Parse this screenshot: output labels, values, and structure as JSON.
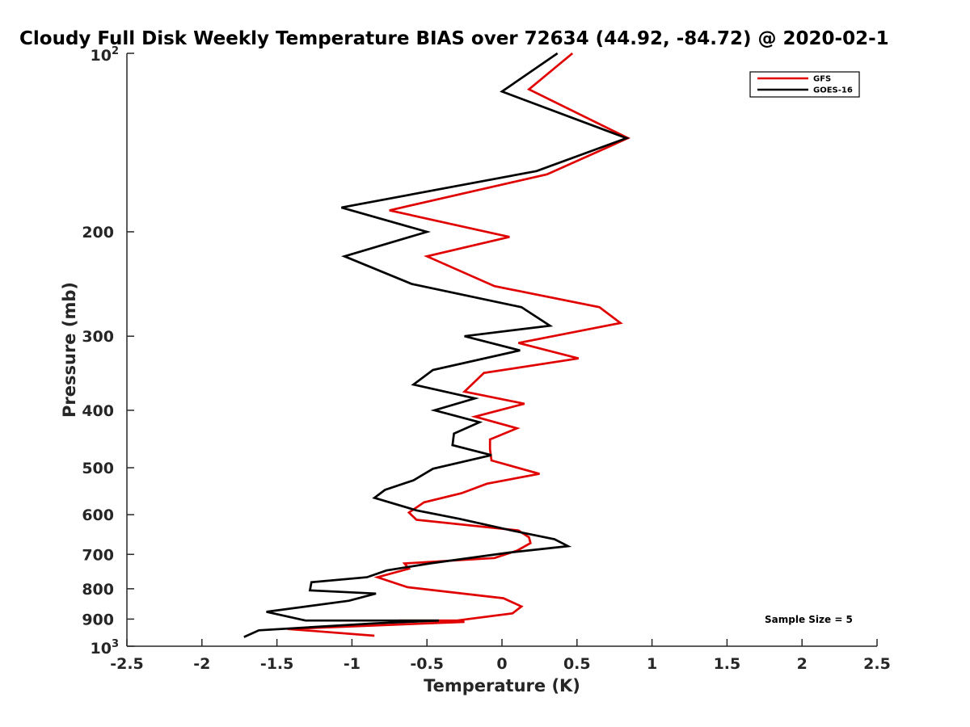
{
  "chart_data": {
    "type": "line",
    "title": "Cloudy Full Disk Weekly Temperature BIAS over 72634 (44.92, -84.72) @ 2020-02-1",
    "xlabel": "Temperature (K)",
    "ylabel": "Pressure (mb)",
    "xlim": [
      -2.5,
      2.5
    ],
    "ylim": [
      100,
      1000
    ],
    "y_scale": "log",
    "y_reversed": true,
    "grid": false,
    "legend_position": "top-right",
    "x_ticks": [
      "-2.5",
      "-2",
      "-1.5",
      "-1",
      "-0.5",
      "0",
      "0.5",
      "1",
      "1.5",
      "2",
      "2.5"
    ],
    "x_tick_values": [
      -2.5,
      -2,
      -1.5,
      -1,
      -0.5,
      0,
      0.5,
      1,
      1.5,
      2,
      2.5
    ],
    "y_ticks": [
      {
        "value": 100,
        "base": "10",
        "exp": "2"
      },
      {
        "value": 200,
        "label": "200"
      },
      {
        "value": 300,
        "label": "300"
      },
      {
        "value": 400,
        "label": "400"
      },
      {
        "value": 500,
        "label": "500"
      },
      {
        "value": 600,
        "label": "600"
      },
      {
        "value": 700,
        "label": "700"
      },
      {
        "value": 800,
        "label": "800"
      },
      {
        "value": 900,
        "label": "900"
      },
      {
        "value": 1000,
        "base": "10",
        "exp": "3"
      }
    ],
    "series": [
      {
        "name": "GFS",
        "color": "#e00000",
        "x": [
          0.47,
          0.18,
          0.84,
          0.3,
          -0.75,
          0.05,
          -0.5,
          -0.05,
          0.65,
          0.79,
          0.11,
          0.51,
          -0.12,
          -0.25,
          0.15,
          -0.18,
          0.1,
          -0.08,
          -0.08,
          -0.07,
          0.25,
          -0.1,
          -0.27,
          -0.52,
          -0.62,
          -0.57,
          0.11,
          0.18,
          0.19,
          0.1,
          -0.05,
          -0.65,
          -0.62,
          -0.83,
          -0.63,
          0.01,
          0.13,
          0.07,
          -0.3,
          -0.69,
          -0.25,
          -1.43,
          -0.85
        ],
        "y": [
          100,
          115,
          139,
          160,
          184,
          204,
          220,
          247,
          268,
          285,
          308,
          327,
          346,
          372,
          390,
          410,
          429,
          448,
          465,
          486,
          512,
          532,
          552,
          572,
          595,
          612,
          638,
          655,
          670,
          690,
          710,
          725,
          740,
          765,
          795,
          830,
          857,
          880,
          905,
          905,
          910,
          935,
          960
        ]
      },
      {
        "name": "GOES-16",
        "color": "#000000",
        "x": [
          0.37,
          0.0,
          0.83,
          0.23,
          -1.07,
          -0.5,
          -1.05,
          -0.6,
          0.13,
          0.32,
          -0.25,
          0.12,
          -0.46,
          -0.59,
          -0.18,
          -0.45,
          -0.15,
          -0.32,
          -0.33,
          -0.07,
          -0.46,
          -0.59,
          -0.78,
          -0.85,
          -0.57,
          -0.28,
          0.09,
          0.35,
          0.44,
          0.05,
          -0.48,
          -0.77,
          -0.9,
          -1.27,
          -1.28,
          -0.84,
          -1.02,
          -1.57,
          -1.31,
          -0.42,
          -0.85,
          -1.62,
          -1.72
        ],
        "y": [
          100,
          116,
          139,
          158,
          182,
          200,
          220,
          245,
          268,
          288,
          300,
          317,
          342,
          362,
          382,
          400,
          419,
          438,
          458,
          476,
          502,
          525,
          545,
          562,
          590,
          610,
          640,
          660,
          678,
          695,
          725,
          745,
          765,
          780,
          805,
          815,
          838,
          875,
          905,
          905,
          915,
          940,
          965
        ]
      }
    ],
    "annotations": [
      "Sample Size = 5"
    ]
  }
}
